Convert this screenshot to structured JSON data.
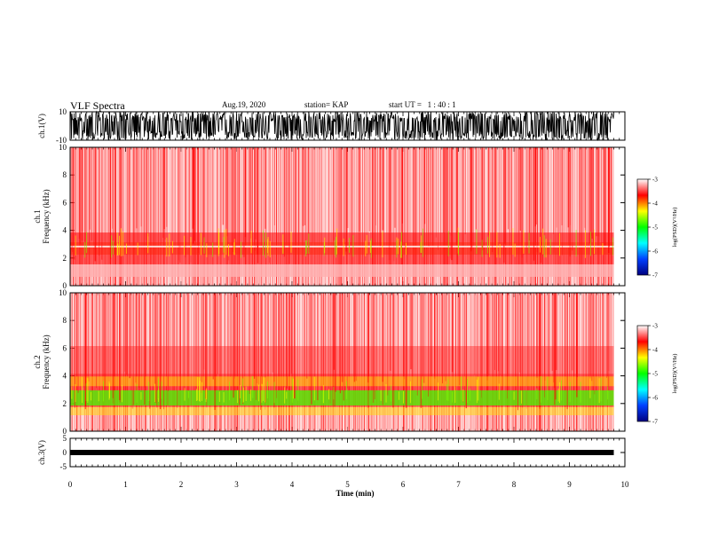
{
  "header": {
    "title": "VLF Spectra",
    "date": "Aug.19, 2020",
    "station": "station= KAP",
    "start_ut": "start UT =   1 : 40 : 1"
  },
  "chart_data": [
    {
      "type": "line",
      "name": "ch1-waveform",
      "ylabel": "ch.1(V)",
      "ylim": [
        -10,
        10
      ],
      "yticks": [
        "10",
        "-10"
      ],
      "xlim": [
        0,
        10
      ],
      "data_end_x": 9.8,
      "description_color": "#000000"
    },
    {
      "type": "heatmap",
      "name": "ch1-spectrogram",
      "ylabel": "ch.1\nFrequency  (kHz)",
      "ylim": [
        0,
        10
      ],
      "yticks": [
        "0",
        "2",
        "4",
        "6",
        "8",
        "10"
      ],
      "xlim": [
        0,
        10
      ],
      "data_end_x": 9.8,
      "colorbar": {
        "label": "log(PSD)(V²/Hz)",
        "range": [
          -7,
          -3
        ],
        "ticks": [
          "-3",
          "-4",
          "-5",
          "-6",
          "-7"
        ],
        "colors": [
          "#000080",
          "#0040ff",
          "#00ffff",
          "#00ff00",
          "#ffff00",
          "#ff0000",
          "#ffffff"
        ]
      }
    },
    {
      "type": "heatmap",
      "name": "ch2-spectrogram",
      "ylabel": "ch.2\nFrequency  (kHz)",
      "ylim": [
        0,
        10
      ],
      "yticks": [
        "0",
        "2",
        "4",
        "6",
        "8",
        "10"
      ],
      "xlim": [
        0,
        10
      ],
      "data_end_x": 9.8,
      "colorbar": {
        "label": "log(PSD)(V²/Hz)",
        "range": [
          -7,
          -3
        ],
        "ticks": [
          "-3",
          "-4",
          "-5",
          "-6",
          "-7"
        ],
        "colors": [
          "#000080",
          "#0040ff",
          "#00ffff",
          "#00ff00",
          "#ffff00",
          "#ff0000",
          "#ffffff"
        ]
      }
    },
    {
      "type": "line",
      "name": "ch3-waveform",
      "ylabel": "ch.3(V)",
      "ylim": [
        -5,
        5
      ],
      "yticks": [
        "5",
        "0",
        "-5"
      ],
      "xlim": [
        0,
        10
      ],
      "data_end_x": 9.8,
      "level": 0
    }
  ],
  "xaxis": {
    "label": "Time  (min)",
    "ticks": [
      "0",
      "1",
      "2",
      "3",
      "4",
      "5",
      "6",
      "7",
      "8",
      "9",
      "10"
    ]
  }
}
